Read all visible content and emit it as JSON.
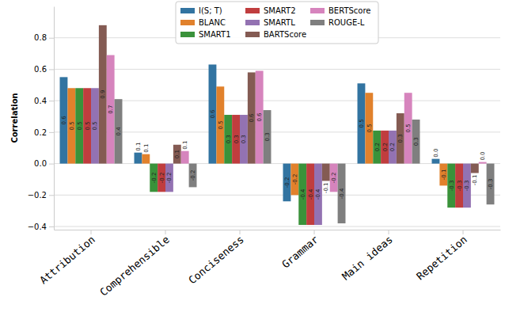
{
  "chart_data": {
    "type": "bar",
    "y_label": "Correlation",
    "categories": [
      "Attribution",
      "Comprehensible",
      "Conciseness",
      "Grammar",
      "Main ideas",
      "Repetition"
    ],
    "series": [
      {
        "name": "I(S; T)",
        "color": "#3274a1",
        "values": [
          0.55,
          0.07,
          0.63,
          -0.24,
          0.51,
          0.03
        ],
        "value_labels": [
          "0.6",
          "0.1",
          "0.6",
          "-0.2",
          "0.5",
          "0.0"
        ]
      },
      {
        "name": "BLANC",
        "color": "#e1812c",
        "values": [
          0.48,
          0.06,
          0.49,
          -0.2,
          0.45,
          -0.14
        ],
        "value_labels": [
          "0.5",
          "0.1",
          "0.5",
          "-0.2",
          "0.5",
          "-0.1"
        ]
      },
      {
        "name": "SMART1",
        "color": "#3a923a",
        "values": [
          0.48,
          -0.18,
          0.31,
          -0.39,
          0.21,
          -0.28
        ],
        "value_labels": [
          "0.5",
          "-0.2",
          "0.3",
          "-0.4",
          "0.2",
          "-0.3"
        ]
      },
      {
        "name": "SMART2",
        "color": "#c03d3e",
        "values": [
          0.48,
          -0.18,
          0.31,
          -0.39,
          0.21,
          -0.28
        ],
        "value_labels": [
          "0.5",
          "-0.2",
          "0.3",
          "-0.4",
          "0.2",
          "-0.3"
        ]
      },
      {
        "name": "SMARTL",
        "color": "#9372b2",
        "values": [
          0.48,
          -0.18,
          0.31,
          -0.39,
          0.21,
          -0.28
        ],
        "value_labels": [
          "0.5",
          "-0.2",
          "0.3",
          "-0.4",
          "0.2",
          "-0.3"
        ]
      },
      {
        "name": "BARTScore",
        "color": "#845b53",
        "values": [
          0.88,
          0.12,
          0.58,
          -0.11,
          0.32,
          -0.06
        ],
        "value_labels": [
          "0.9",
          "0.1",
          "0.6",
          "-0.1",
          "0.3",
          "-0.1"
        ]
      },
      {
        "name": "BERTScore",
        "color": "#d684bd",
        "values": [
          0.69,
          0.08,
          0.59,
          -0.18,
          0.45,
          0.01
        ],
        "value_labels": [
          "0.7",
          "0.1",
          "0.6",
          "-0.2",
          "0.5",
          "0.0"
        ]
      },
      {
        "name": "ROUGE-L",
        "color": "#7f7f7f",
        "values": [
          0.41,
          -0.15,
          0.34,
          -0.38,
          0.28,
          -0.26
        ],
        "value_labels": [
          "0.4",
          "-0.2",
          "0.3",
          "-0.4",
          "0.3",
          "-0.3"
        ]
      }
    ],
    "ylim": [
      -0.42,
      1.0
    ],
    "yticks": [
      {
        "value": -0.4,
        "label": "−0.4"
      },
      {
        "value": -0.2,
        "label": "−0.2"
      },
      {
        "value": 0,
        "label": "0.0"
      },
      0.2,
      0.4,
      0.6,
      0.8
    ],
    "grid": true,
    "legend": "upper center",
    "data_labels": true
  }
}
